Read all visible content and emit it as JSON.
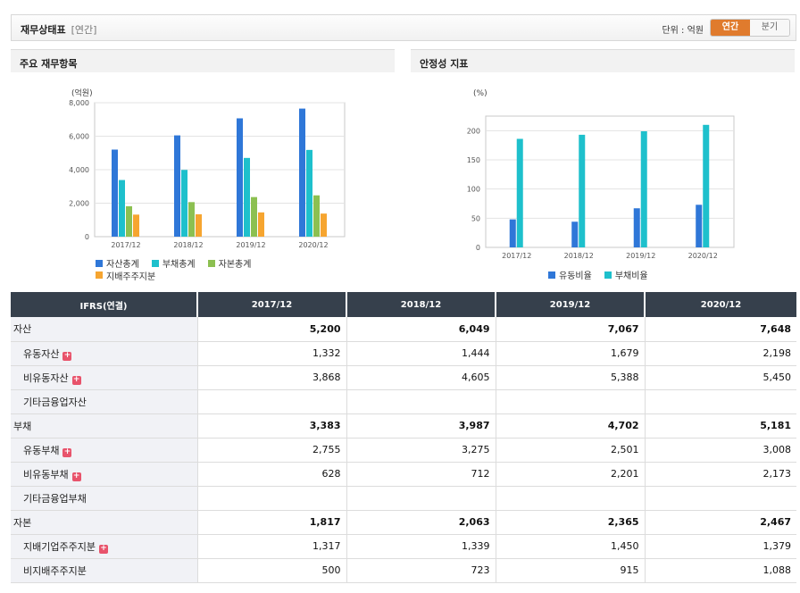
{
  "header": {
    "title": "재무상태표",
    "subtitle": "[연간]",
    "unit_label": "단위 : 억원",
    "tabs": [
      {
        "label": "연간",
        "active": true
      },
      {
        "label": "분기",
        "active": false
      }
    ]
  },
  "panels": {
    "left_title": "주요 재무항목",
    "right_title": "안정성 지표"
  },
  "chart_data": [
    {
      "type": "bar",
      "title": "주요 재무항목",
      "ylabel": "(억원)",
      "ylim": [
        0,
        8000
      ],
      "yticks": [
        "0",
        "2,000",
        "4,000",
        "6,000",
        "8,000"
      ],
      "ytick_values": [
        0,
        2000,
        4000,
        6000,
        8000
      ],
      "categories": [
        "2017/12",
        "2018/12",
        "2019/12",
        "2020/12"
      ],
      "series": [
        {
          "name": "자산총계",
          "color": "#2f77d8",
          "values": [
            5200,
            6049,
            7067,
            7648
          ]
        },
        {
          "name": "부채총계",
          "color": "#1ec0cc",
          "values": [
            3383,
            3987,
            4702,
            5181
          ]
        },
        {
          "name": "자본총계",
          "color": "#8cc051",
          "values": [
            1817,
            2063,
            2365,
            2467
          ]
        },
        {
          "name": "지배주주지분",
          "color": "#f6a530",
          "values": [
            1317,
            1339,
            1450,
            1379
          ]
        }
      ]
    },
    {
      "type": "bar",
      "title": "안정성 지표",
      "ylabel": "(%)",
      "ylim": [
        0,
        225
      ],
      "yticks": [
        "0",
        "50",
        "100",
        "150",
        "200"
      ],
      "ytick_values": [
        0,
        50,
        100,
        150,
        200
      ],
      "categories": [
        "2017/12",
        "2018/12",
        "2019/12",
        "2020/12"
      ],
      "series": [
        {
          "name": "유동비율",
          "color": "#2f77d8",
          "values": [
            48,
            44,
            67,
            73
          ]
        },
        {
          "name": "부채비율",
          "color": "#1ec0cc",
          "values": [
            186,
            193,
            199,
            210
          ]
        }
      ]
    }
  ],
  "table": {
    "header": [
      "IFRS(연결)",
      "2017/12",
      "2018/12",
      "2019/12",
      "2020/12"
    ],
    "rows": [
      {
        "label": "자산",
        "main": true,
        "expand": false,
        "values": [
          "5,200",
          "6,049",
          "7,067",
          "7,648"
        ]
      },
      {
        "label": "유동자산",
        "main": false,
        "expand": true,
        "values": [
          "1,332",
          "1,444",
          "1,679",
          "2,198"
        ]
      },
      {
        "label": "비유동자산",
        "main": false,
        "expand": true,
        "values": [
          "3,868",
          "4,605",
          "5,388",
          "5,450"
        ]
      },
      {
        "label": "기타금융업자산",
        "main": false,
        "expand": false,
        "values": [
          "",
          "",
          "",
          ""
        ]
      },
      {
        "label": "부채",
        "main": true,
        "expand": false,
        "values": [
          "3,383",
          "3,987",
          "4,702",
          "5,181"
        ]
      },
      {
        "label": "유동부채",
        "main": false,
        "expand": true,
        "values": [
          "2,755",
          "3,275",
          "2,501",
          "3,008"
        ]
      },
      {
        "label": "비유동부채",
        "main": false,
        "expand": true,
        "values": [
          "628",
          "712",
          "2,201",
          "2,173"
        ]
      },
      {
        "label": "기타금융업부채",
        "main": false,
        "expand": false,
        "values": [
          "",
          "",
          "",
          ""
        ]
      },
      {
        "label": "자본",
        "main": true,
        "expand": false,
        "values": [
          "1,817",
          "2,063",
          "2,365",
          "2,467"
        ]
      },
      {
        "label": "지배기업주주지분",
        "main": false,
        "expand": true,
        "values": [
          "1,317",
          "1,339",
          "1,450",
          "1,379"
        ]
      },
      {
        "label": "비지배주주지분",
        "main": false,
        "expand": false,
        "values": [
          "500",
          "723",
          "915",
          "1,088"
        ]
      }
    ]
  }
}
